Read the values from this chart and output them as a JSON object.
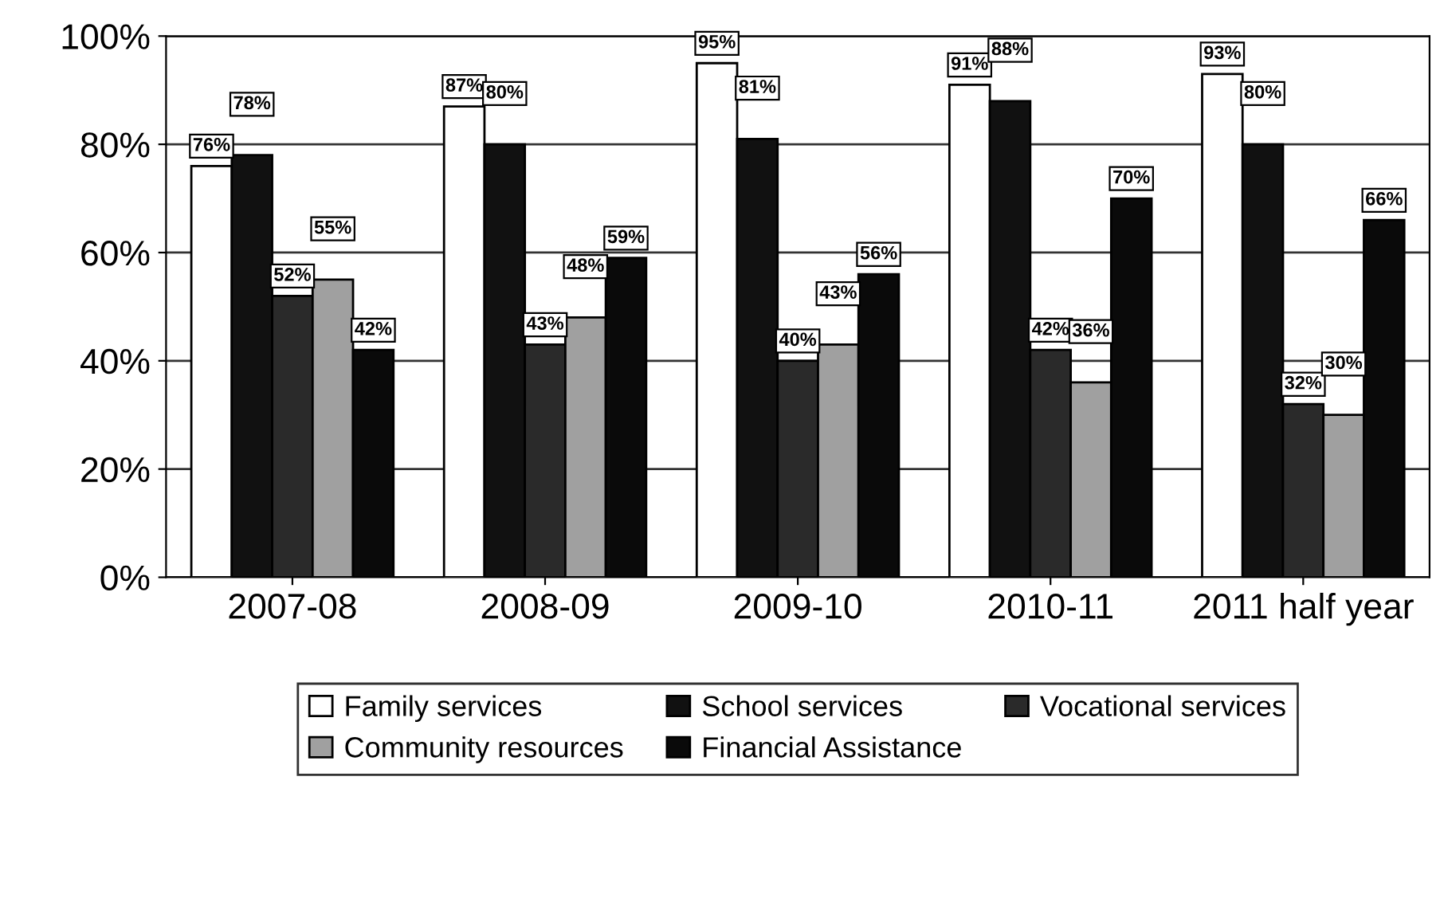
{
  "chart_data": {
    "type": "bar",
    "categories": [
      "2007-08",
      "2008-09",
      "2009-10",
      "2010-11",
      "2011 half year"
    ],
    "series": [
      {
        "name": "Family services",
        "color": "#ffffff",
        "values": [
          76,
          87,
          95,
          91,
          93
        ],
        "value_labels": [
          "76%",
          "87%",
          "95%",
          "91%",
          "93%"
        ]
      },
      {
        "name": "School services",
        "color": "#111111",
        "values": [
          78,
          80,
          81,
          88,
          80
        ],
        "value_labels": [
          "78%",
          "80%",
          "81%",
          "88%",
          "80%"
        ]
      },
      {
        "name": "Vocational services",
        "color": "#2a2a2a",
        "values": [
          52,
          43,
          40,
          42,
          32
        ],
        "value_labels": [
          "52%",
          "43%",
          "40%",
          "42%",
          "32%"
        ]
      },
      {
        "name": "Community resources",
        "color": "#a0a0a0",
        "values": [
          55,
          48,
          43,
          36,
          30
        ],
        "value_labels": [
          "55%",
          "48%",
          "43%",
          "36%",
          "30%"
        ]
      },
      {
        "name": "Financial Assistance",
        "color": "#0a0a0a",
        "values": [
          42,
          59,
          56,
          70,
          66
        ],
        "value_labels": [
          "42%",
          "59%",
          "56%",
          "70%",
          "66%"
        ]
      }
    ],
    "ylim": [
      0,
      100
    ],
    "yticks": [
      {
        "value": 0,
        "label": "0%"
      },
      {
        "value": 20,
        "label": "20%"
      },
      {
        "value": 40,
        "label": "40%"
      },
      {
        "value": 60,
        "label": "60%"
      },
      {
        "value": 80,
        "label": "80%"
      },
      {
        "value": 100,
        "label": "100%"
      }
    ],
    "grid": "y",
    "legend": "bottom"
  }
}
